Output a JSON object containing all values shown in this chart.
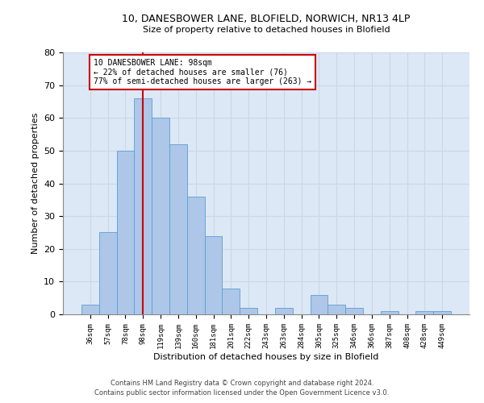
{
  "title1": "10, DANESBOWER LANE, BLOFIELD, NORWICH, NR13 4LP",
  "title2": "Size of property relative to detached houses in Blofield",
  "xlabel": "Distribution of detached houses by size in Blofield",
  "ylabel": "Number of detached properties",
  "footnote1": "Contains HM Land Registry data © Crown copyright and database right 2024.",
  "footnote2": "Contains public sector information licensed under the Open Government Licence v3.0.",
  "bar_labels": [
    "36sqm",
    "57sqm",
    "78sqm",
    "98sqm",
    "119sqm",
    "139sqm",
    "160sqm",
    "181sqm",
    "201sqm",
    "222sqm",
    "243sqm",
    "263sqm",
    "284sqm",
    "305sqm",
    "325sqm",
    "346sqm",
    "366sqm",
    "387sqm",
    "408sqm",
    "428sqm",
    "449sqm"
  ],
  "bar_values": [
    3,
    25,
    50,
    66,
    60,
    52,
    36,
    24,
    8,
    2,
    0,
    2,
    0,
    6,
    3,
    2,
    0,
    1,
    0,
    1,
    1
  ],
  "bar_color": "#aec6e8",
  "bar_edgecolor": "#5a9fd4",
  "property_line_x": 3,
  "annotation_title": "10 DANESBOWER LANE: 98sqm",
  "annotation_line1": "← 22% of detached houses are smaller (76)",
  "annotation_line2": "77% of semi-detached houses are larger (263) →",
  "annotation_box_color": "#cc0000",
  "ylim": [
    0,
    80
  ],
  "yticks": [
    0,
    10,
    20,
    30,
    40,
    50,
    60,
    70,
    80
  ],
  "grid_color": "#c8d8e8",
  "background_color": "#dce8f5"
}
